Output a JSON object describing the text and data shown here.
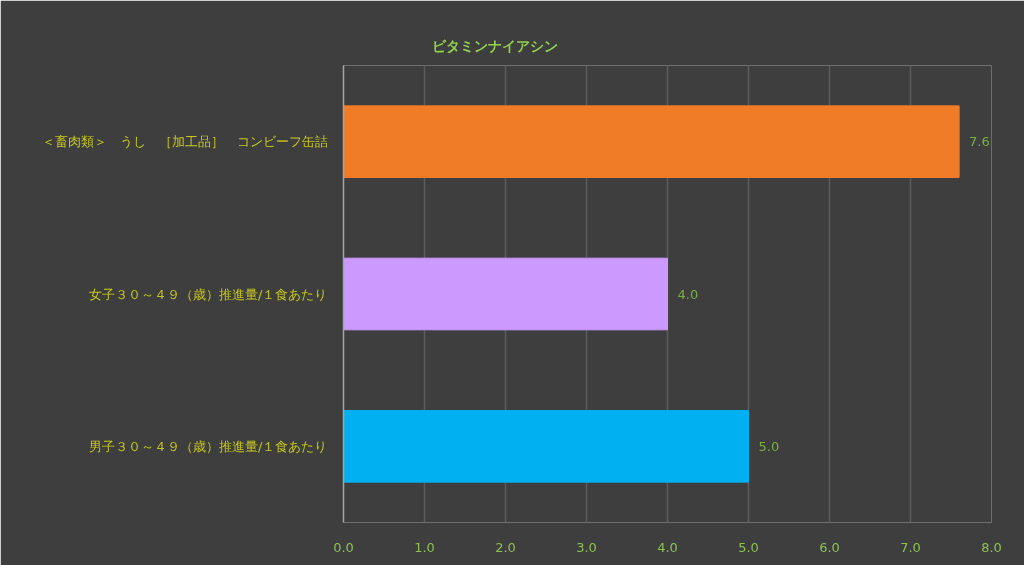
{
  "chart_data": {
    "type": "bar",
    "orientation": "horizontal",
    "title": "ビタミンナイアシン",
    "categories": [
      "＜畜肉類＞　うし　［加工品］　コンビーフ缶詰",
      "女子３０～４９（歳）推進量/１食あたり",
      "男子３０～４９（歳）推進量/１食あたり"
    ],
    "values": [
      7.6,
      4.0,
      5.0
    ],
    "colors": [
      "#f07c28",
      "#cc99ff",
      "#00b0f0"
    ],
    "value_labels": [
      "7.6",
      "4.0",
      "5.0"
    ],
    "xlim": [
      0,
      8
    ],
    "xticks": [
      {
        "value": 0,
        "label": "0.0"
      },
      {
        "value": 1,
        "label": "1.0"
      },
      {
        "value": 2,
        "label": "2.0"
      },
      {
        "value": 3,
        "label": "3.0"
      },
      {
        "value": 4,
        "label": "4.0"
      },
      {
        "value": 5,
        "label": "5.0"
      },
      {
        "value": 6,
        "label": "6.0"
      },
      {
        "value": 7,
        "label": "7.0"
      },
      {
        "value": 8,
        "label": "8.0"
      }
    ],
    "grid": "x"
  }
}
